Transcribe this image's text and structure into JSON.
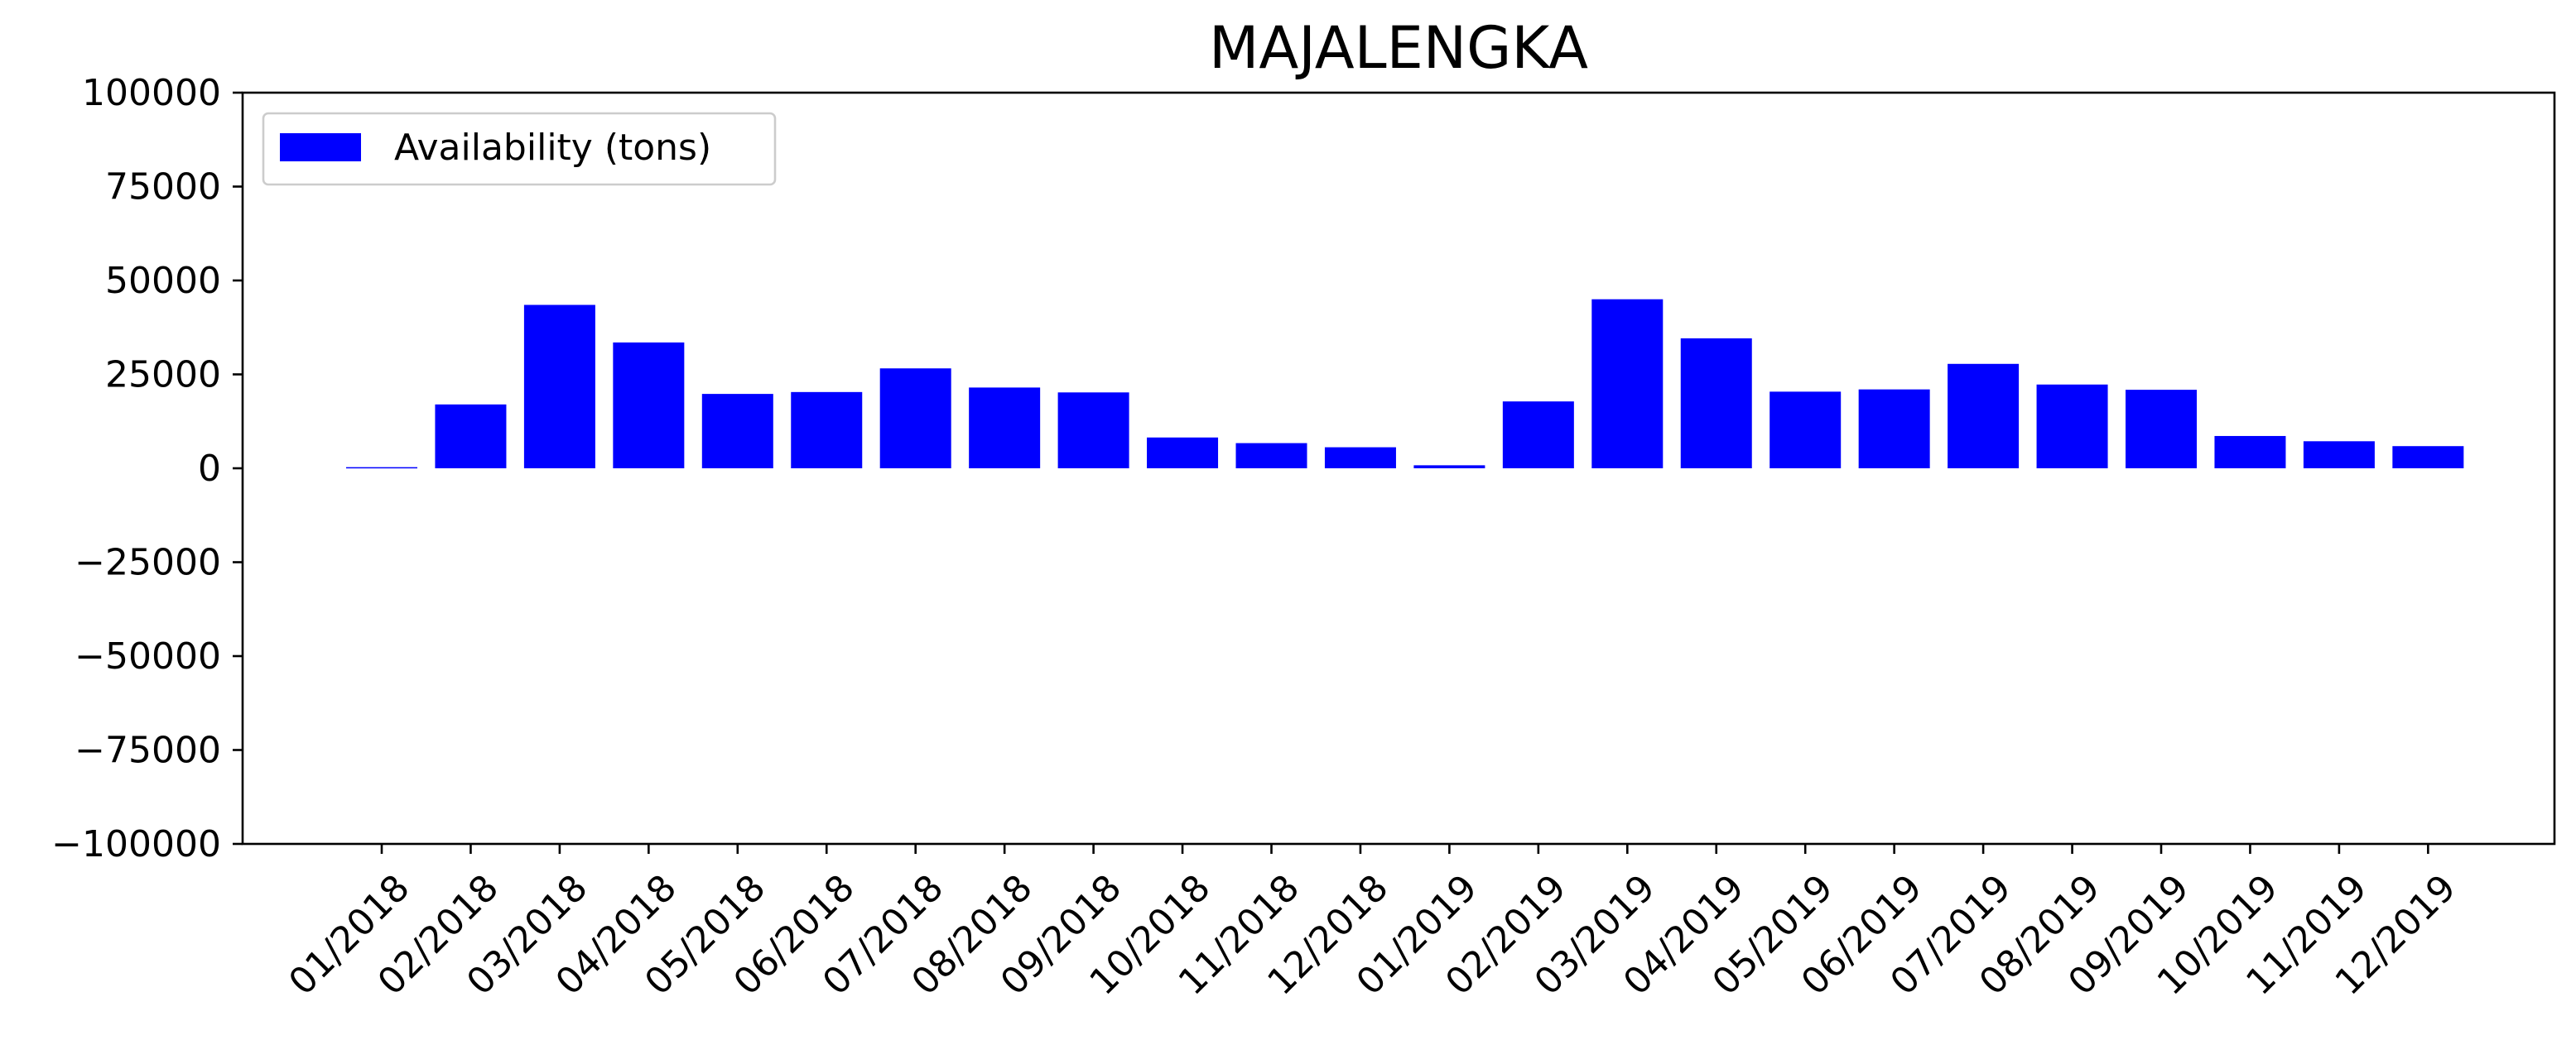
{
  "chart_data": {
    "type": "bar",
    "title": "MAJALENGKA",
    "xlabel": "",
    "ylabel": "",
    "ylim": [
      -100000,
      100000
    ],
    "yticks": [
      100000,
      75000,
      50000,
      25000,
      0,
      -25000,
      -50000,
      -75000,
      -100000
    ],
    "ytick_labels": [
      "100000",
      "75000",
      "50000",
      "25000",
      "0",
      "−25000",
      "−50000",
      "−75000",
      "−100000"
    ],
    "categories": [
      "01/2018",
      "02/2018",
      "03/2018",
      "04/2018",
      "05/2018",
      "06/2018",
      "07/2018",
      "08/2018",
      "09/2018",
      "10/2018",
      "11/2018",
      "12/2018",
      "01/2019",
      "02/2019",
      "03/2019",
      "04/2019",
      "05/2019",
      "06/2019",
      "07/2019",
      "08/2019",
      "09/2019",
      "10/2019",
      "11/2019",
      "12/2019"
    ],
    "series": [
      {
        "name": "Availability (tons)",
        "color": "#0000ff",
        "values": [
          300,
          17000,
          43500,
          33500,
          19800,
          20300,
          26600,
          21500,
          20200,
          8200,
          6700,
          5600,
          800,
          17800,
          45000,
          34600,
          20400,
          21000,
          27800,
          22300,
          20900,
          8600,
          7200,
          5900
        ]
      }
    ],
    "legend_position": "top-left",
    "grid": false
  }
}
